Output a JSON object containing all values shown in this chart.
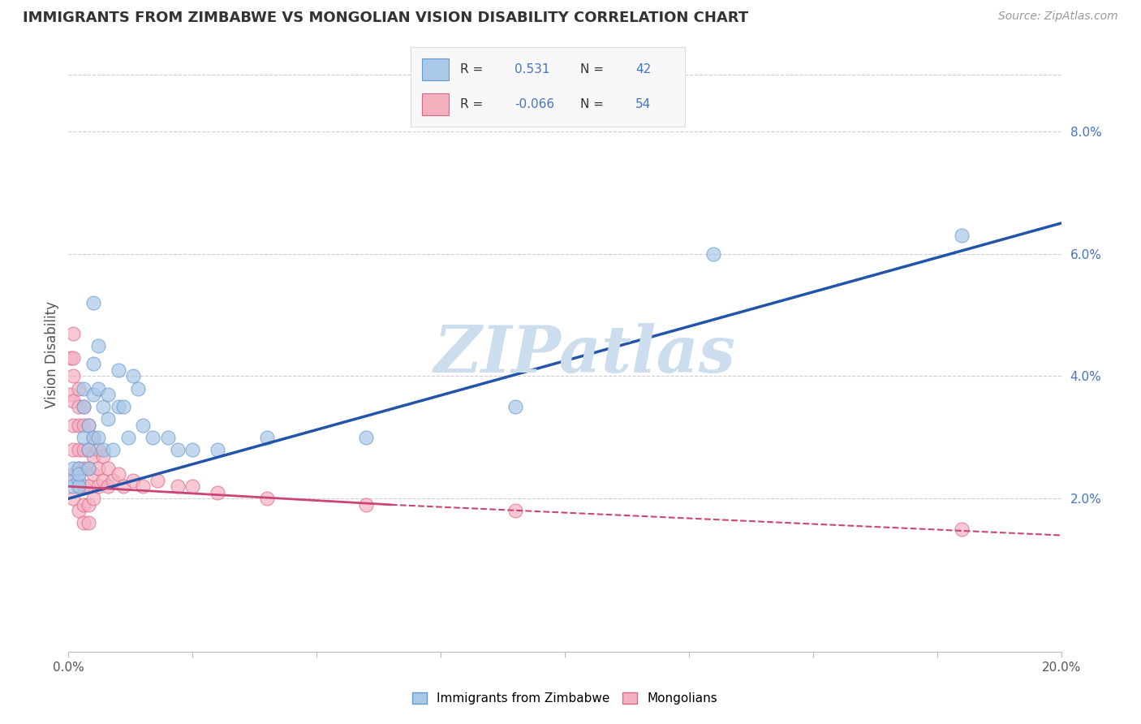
{
  "title": "IMMIGRANTS FROM ZIMBABWE VS MONGOLIAN VISION DISABILITY CORRELATION CHART",
  "source": "Source: ZipAtlas.com",
  "ylabel": "Vision Disability",
  "xlim": [
    0.0,
    0.2
  ],
  "ylim": [
    -0.005,
    0.092
  ],
  "plot_ylim": [
    -0.005,
    0.092
  ],
  "xticks": [
    0.0,
    0.025,
    0.05,
    0.075,
    0.1,
    0.125,
    0.15,
    0.175,
    0.2
  ],
  "xtick_labels_show": [
    "0.0%",
    "",
    "",
    "",
    "",
    "",
    "",
    "",
    "20.0%"
  ],
  "yticks_right": [
    0.02,
    0.04,
    0.06,
    0.08
  ],
  "ytick_labels_right": [
    "2.0%",
    "4.0%",
    "6.0%",
    "8.0%"
  ],
  "series1_label": "Immigrants from Zimbabwe",
  "series1_color": "#aac8e8",
  "series1_edge_color": "#6699cc",
  "series1_line_color": "#2255aa",
  "series1_R": 0.531,
  "series1_N": 42,
  "series2_label": "Mongolians",
  "series2_color": "#f5b0c0",
  "series2_edge_color": "#dd6688",
  "series2_line_color": "#cc4477",
  "series2_R": -0.066,
  "series2_N": 54,
  "background_color": "#ffffff",
  "grid_color": "#cccccc",
  "title_color": "#333333",
  "watermark": "ZIPatlas",
  "watermark_color": "#ccdded",
  "legend_color": "#4472c4",
  "zimbabwe_x": [
    0.001,
    0.001,
    0.001,
    0.002,
    0.002,
    0.002,
    0.002,
    0.003,
    0.003,
    0.003,
    0.004,
    0.004,
    0.004,
    0.005,
    0.005,
    0.005,
    0.005,
    0.006,
    0.006,
    0.006,
    0.007,
    0.007,
    0.008,
    0.008,
    0.009,
    0.01,
    0.01,
    0.011,
    0.012,
    0.013,
    0.014,
    0.015,
    0.017,
    0.02,
    0.022,
    0.025,
    0.03,
    0.04,
    0.06,
    0.09,
    0.13,
    0.18
  ],
  "zimbabwe_y": [
    0.023,
    0.025,
    0.022,
    0.025,
    0.023,
    0.022,
    0.024,
    0.035,
    0.038,
    0.03,
    0.032,
    0.028,
    0.025,
    0.052,
    0.042,
    0.037,
    0.03,
    0.045,
    0.038,
    0.03,
    0.035,
    0.028,
    0.037,
    0.033,
    0.028,
    0.041,
    0.035,
    0.035,
    0.03,
    0.04,
    0.038,
    0.032,
    0.03,
    0.03,
    0.028,
    0.028,
    0.028,
    0.03,
    0.03,
    0.035,
    0.06,
    0.063
  ],
  "mongolian_x": [
    0.0005,
    0.0005,
    0.001,
    0.001,
    0.001,
    0.001,
    0.001,
    0.001,
    0.001,
    0.001,
    0.002,
    0.002,
    0.002,
    0.002,
    0.002,
    0.002,
    0.002,
    0.003,
    0.003,
    0.003,
    0.003,
    0.003,
    0.003,
    0.003,
    0.004,
    0.004,
    0.004,
    0.004,
    0.004,
    0.004,
    0.005,
    0.005,
    0.005,
    0.005,
    0.006,
    0.006,
    0.006,
    0.007,
    0.007,
    0.008,
    0.008,
    0.009,
    0.01,
    0.011,
    0.013,
    0.015,
    0.018,
    0.022,
    0.025,
    0.03,
    0.04,
    0.06,
    0.09,
    0.18
  ],
  "mongolian_y": [
    0.043,
    0.037,
    0.047,
    0.043,
    0.04,
    0.036,
    0.032,
    0.028,
    0.024,
    0.02,
    0.038,
    0.035,
    0.032,
    0.028,
    0.025,
    0.022,
    0.018,
    0.035,
    0.032,
    0.028,
    0.025,
    0.022,
    0.019,
    0.016,
    0.032,
    0.028,
    0.025,
    0.022,
    0.019,
    0.016,
    0.03,
    0.027,
    0.024,
    0.02,
    0.028,
    0.025,
    0.022,
    0.027,
    0.023,
    0.025,
    0.022,
    0.023,
    0.024,
    0.022,
    0.023,
    0.022,
    0.023,
    0.022,
    0.022,
    0.021,
    0.02,
    0.019,
    0.018,
    0.015
  ]
}
